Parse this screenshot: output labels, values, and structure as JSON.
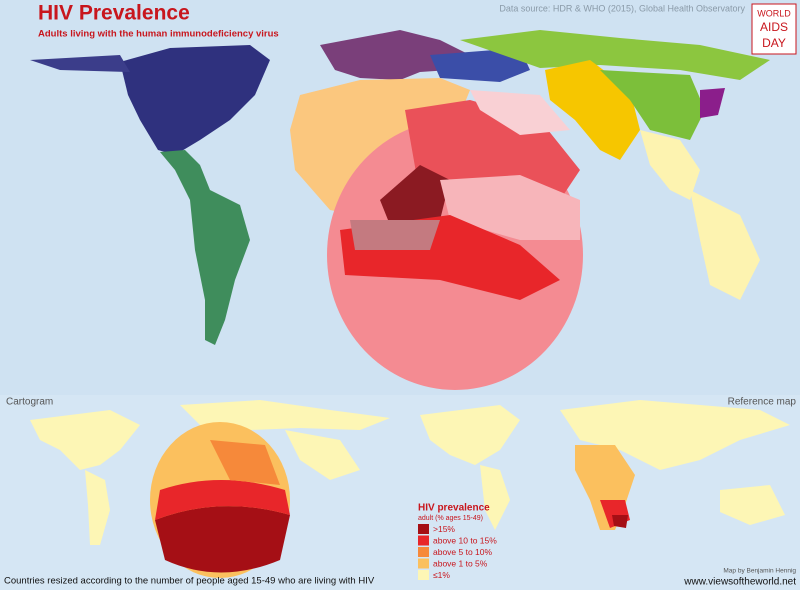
{
  "header": {
    "title": "HIV Prevalence",
    "subtitle": "Adults living with the human immunodeficiency virus",
    "source": "Data source: HDR & WHO (2015), Global Health Observatory",
    "logo": [
      "WORLD",
      "AIDS",
      "DAY"
    ]
  },
  "panels": {
    "cartogram": "Cartogram",
    "reference": "Reference map"
  },
  "legend": {
    "title": "HIV prevalence",
    "subtitle": "adult (% ages 15-49)",
    "items": [
      {
        "label": ">15%",
        "color": "#a50f15"
      },
      {
        "label": "above 10 to 15%",
        "color": "#e8262a"
      },
      {
        "label": "above 5 to 10%",
        "color": "#f6893a"
      },
      {
        "label": "above 1 to 5%",
        "color": "#fbc05e"
      },
      {
        "label": "≤1%",
        "color": "#fdf6b5"
      }
    ]
  },
  "footer": {
    "description": "Countries resized according to the number of people aged 15-49 who are living with HIV",
    "credit": "Map by Benjamin Hennig",
    "website": "www.viewsoftheworld.net"
  }
}
